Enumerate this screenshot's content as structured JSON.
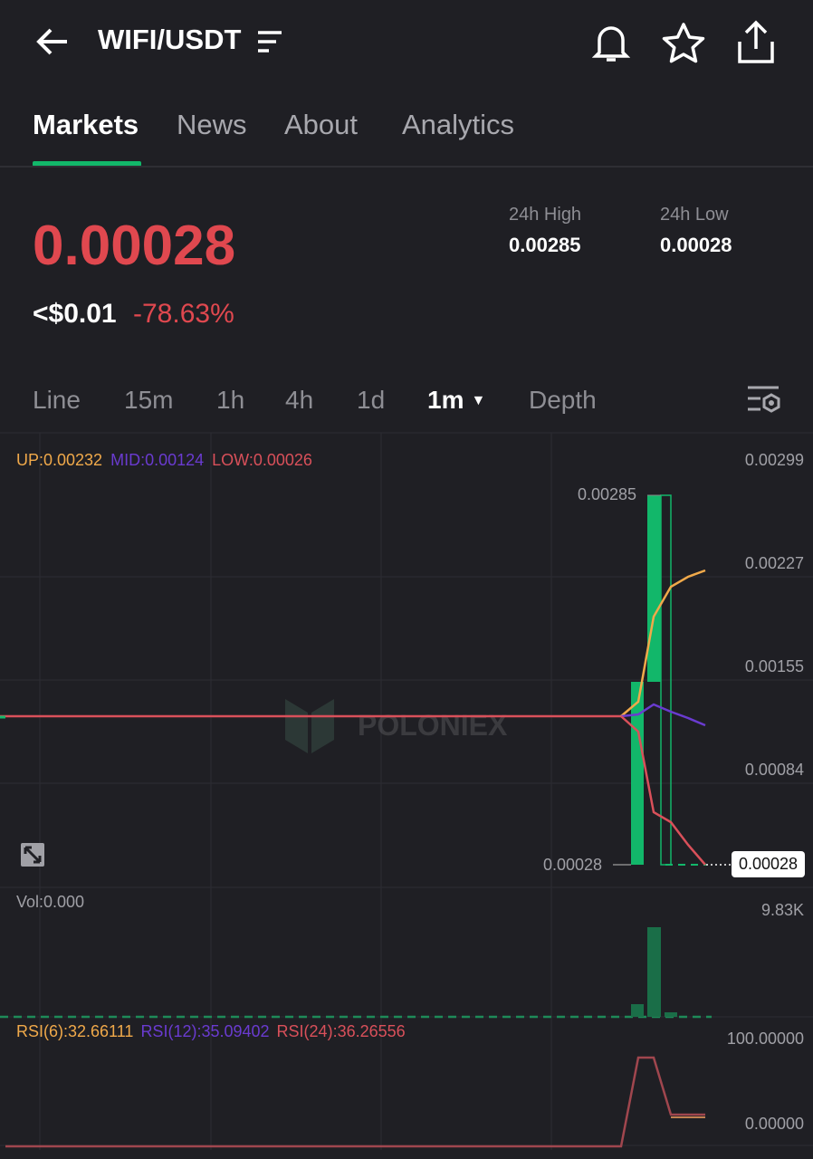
{
  "header": {
    "title": "WIFI/USDT",
    "icons": [
      "back-arrow-icon",
      "menu-lines-icon",
      "bell-icon",
      "star-icon",
      "share-icon"
    ]
  },
  "tabs": [
    {
      "label": "Markets",
      "active": true
    },
    {
      "label": "News"
    },
    {
      "label": "About"
    },
    {
      "label": "Analytics"
    }
  ],
  "ticker": {
    "price": "0.00028",
    "usd": "<$0.01",
    "change": "-78.63%",
    "high_label": "24h High",
    "high": "0.00285",
    "low_label": "24h Low",
    "low": "0.00028"
  },
  "intervals": [
    {
      "label": "Line"
    },
    {
      "label": "15m"
    },
    {
      "label": "1h"
    },
    {
      "label": "4h"
    },
    {
      "label": "1d"
    },
    {
      "label": "1m",
      "active": true
    },
    {
      "label": "Depth"
    }
  ],
  "chart": {
    "boll": {
      "up": "UP:0.00232",
      "mid": "MID:0.00124",
      "low": "LOW:0.00026"
    },
    "price_axis": [
      "0.00299",
      "0.00227",
      "0.00155",
      "0.00084"
    ],
    "high_marker": "0.00285",
    "low_marker": "0.00028",
    "current_price": "0.00028",
    "watermark": "POLONIEX",
    "vol_label": "Vol:0.000",
    "vol_axis": "9.83K",
    "rsi": {
      "r6": "RSI(6):32.66111",
      "r12": "RSI(12):35.09402",
      "r24": "RSI(24):36.26556"
    },
    "rsi_axis": [
      "100.00000",
      "0.00000"
    ],
    "colors": {
      "up": "#12b76a",
      "down": "#e0484f",
      "boll_up": "#f0a94a",
      "boll_mid": "#6a3bd0",
      "boll_low": "#d9505a"
    }
  }
}
